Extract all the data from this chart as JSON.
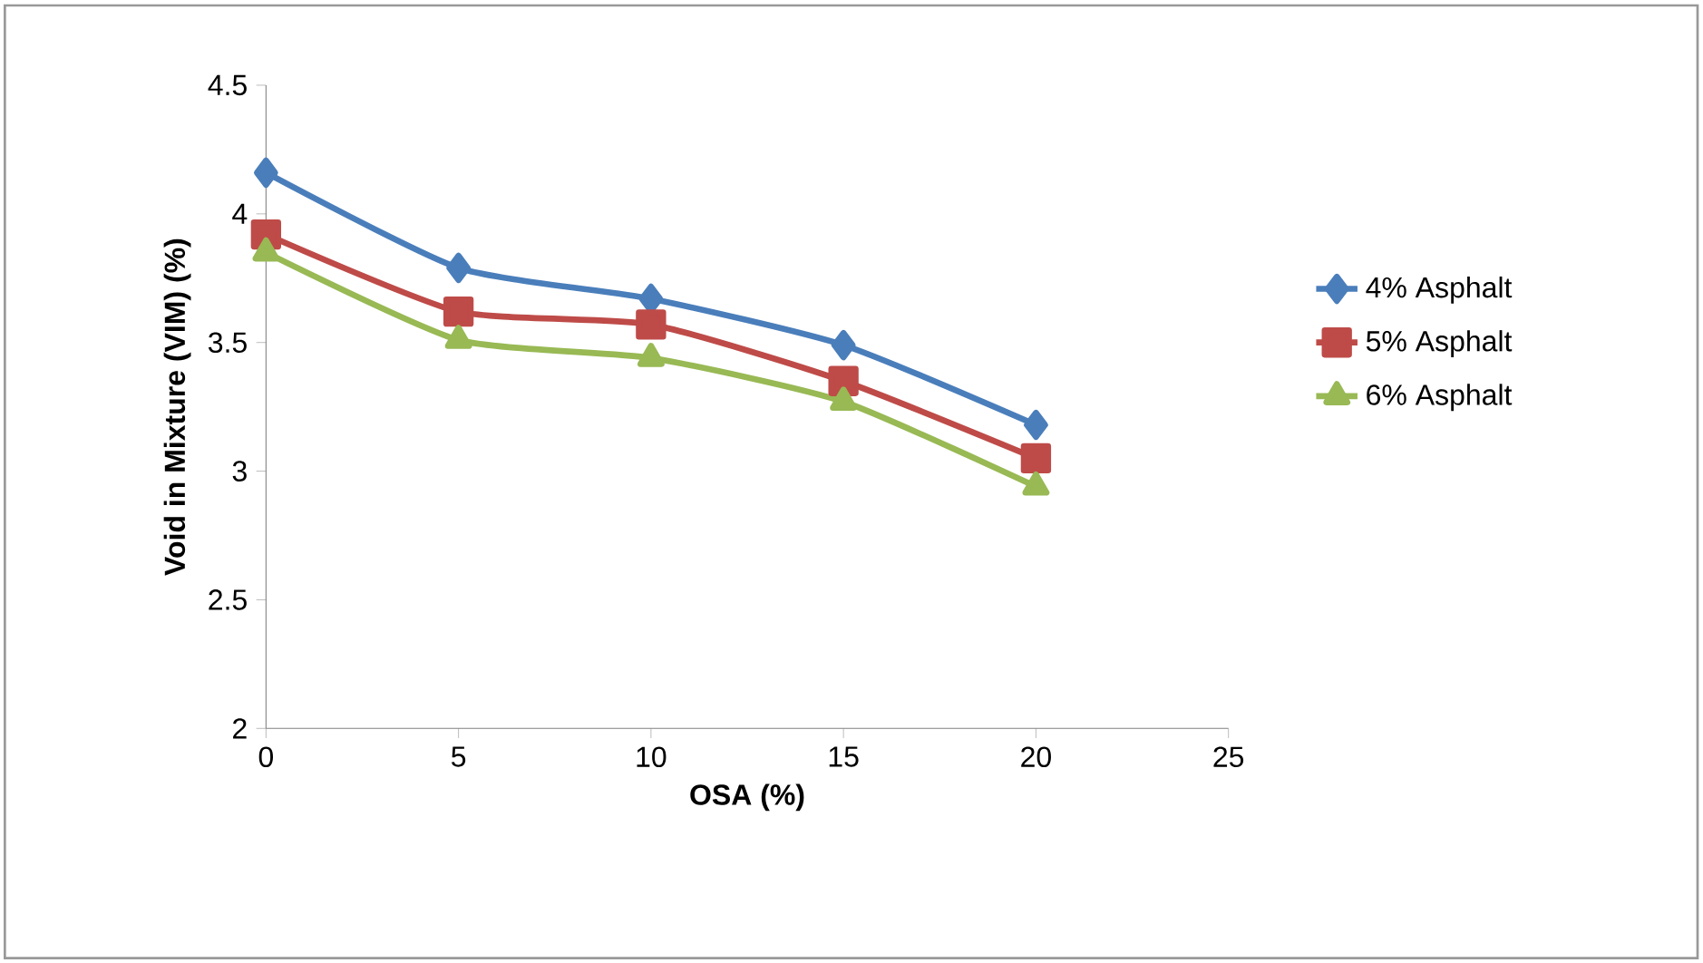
{
  "chart_data": {
    "type": "line",
    "xlabel": "OSA (%)",
    "ylabel": "Void in Mixture  (VIM)  (%)",
    "x": [
      0,
      5,
      10,
      15,
      20
    ],
    "series": [
      {
        "name": "4% Asphalt",
        "color": "#4a7ebb",
        "marker": "diamond",
        "values": [
          4.16,
          3.79,
          3.67,
          3.49,
          3.18
        ]
      },
      {
        "name": "5% Asphalt",
        "color": "#be4b48",
        "marker": "square",
        "values": [
          3.92,
          3.62,
          3.57,
          3.35,
          3.05
        ]
      },
      {
        "name": "6% Asphalt",
        "color": "#98b954",
        "marker": "triangle",
        "values": [
          3.85,
          3.51,
          3.44,
          3.27,
          2.94
        ]
      }
    ],
    "xlim": [
      0,
      25
    ],
    "xticks": [
      0,
      5,
      10,
      15,
      20,
      25
    ],
    "ylim": [
      2,
      4.5
    ],
    "yticks": [
      2,
      2.5,
      3,
      3.5,
      4,
      4.5
    ],
    "grid": false,
    "legend": "right",
    "line_style": "solid"
  }
}
